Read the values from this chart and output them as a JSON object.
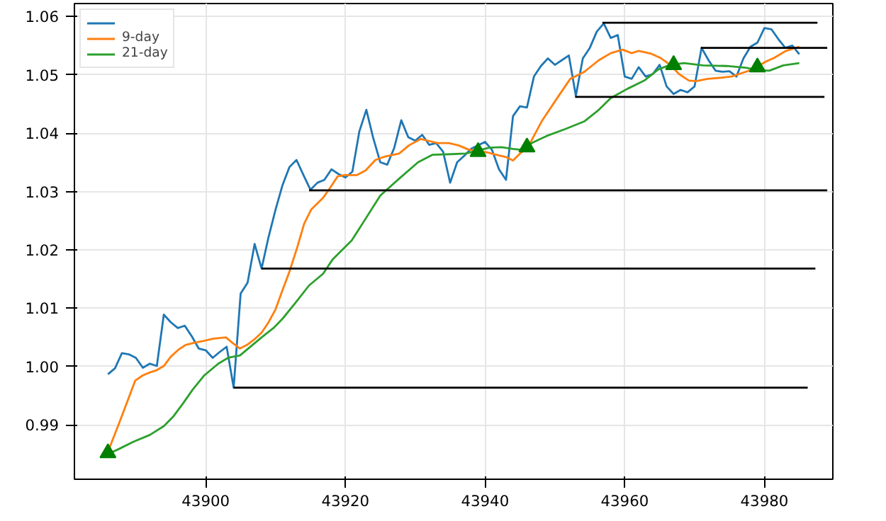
{
  "chart_data": {
    "type": "line",
    "xlim": [
      43881.2,
      43989.8
    ],
    "ylim": [
      0.9807,
      1.0622
    ],
    "xticks": [
      43900,
      43920,
      43940,
      43960,
      43980
    ],
    "yticks": [
      0.99,
      {
        "value": 1.0,
        "label": "1.00"
      },
      1.01,
      1.02,
      1.03,
      1.04,
      1.05,
      1.06
    ],
    "grid": true,
    "legend": "top left",
    "series": [
      {
        "name": null,
        "color": "#1f77b4",
        "x": [
          43886,
          43887,
          43888,
          43889,
          43890,
          43891,
          43892,
          43893,
          43894,
          43895,
          43896,
          43897,
          43898,
          43899,
          43900,
          43901,
          43902,
          43903,
          43904,
          43905,
          43906,
          43907,
          43908,
          43909,
          43910,
          43911,
          43912,
          43913,
          43914,
          43915,
          43916,
          43917,
          43918,
          43919,
          43920,
          43921,
          43922,
          43923,
          43924,
          43925,
          43926,
          43927,
          43928,
          43929,
          43930,
          43931,
          43932,
          43933,
          43934,
          43935,
          43936,
          43937,
          43938,
          43939,
          43940,
          43941,
          43942,
          43943,
          43944,
          43945,
          43946,
          43947,
          43948,
          43949,
          43950,
          43951,
          43952,
          43953,
          43954,
          43955,
          43956,
          43957,
          43958,
          43959,
          43960,
          43961,
          43962,
          43963,
          43964,
          43965,
          43966,
          43967,
          43968,
          43969,
          43970,
          43971,
          43972,
          43973,
          43974,
          43975,
          43976,
          43977,
          43978,
          43979,
          43980,
          43981,
          43982,
          43983,
          43984,
          43985
        ],
        "values": [
          0.9987,
          0.9997,
          1.0023,
          1.0021,
          1.0015,
          0.9998,
          1.0005,
          1.0001,
          1.0089,
          1.0076,
          1.0066,
          1.007,
          1.0052,
          1.0031,
          1.0028,
          1.0015,
          1.0025,
          1.0034,
          0.9964,
          1.0125,
          1.0144,
          1.021,
          1.0168,
          1.0222,
          1.0269,
          1.0311,
          1.0342,
          1.0354,
          1.0328,
          1.0303,
          1.0315,
          1.032,
          1.0338,
          1.033,
          1.0324,
          1.0334,
          1.0403,
          1.044,
          1.0391,
          1.035,
          1.0346,
          1.0375,
          1.0422,
          1.0393,
          1.0387,
          1.0397,
          1.038,
          1.0383,
          1.0368,
          1.0315,
          1.035,
          1.0361,
          1.0373,
          1.0379,
          1.0385,
          1.0371,
          1.0338,
          1.032,
          1.0429,
          1.0446,
          1.0444,
          1.0497,
          1.0515,
          1.0528,
          1.0517,
          1.0525,
          1.0533,
          1.0464,
          1.0528,
          1.0546,
          1.0574,
          1.0588,
          1.0563,
          1.0568,
          1.0497,
          1.0493,
          1.0513,
          1.0497,
          1.0501,
          1.0517,
          1.048,
          1.0467,
          1.0474,
          1.047,
          1.048,
          1.0546,
          1.0525,
          1.0507,
          1.0505,
          1.0506,
          1.0497,
          1.0528,
          1.0548,
          1.0555,
          1.058,
          1.0578,
          1.0561,
          1.0546,
          1.055,
          1.0535
        ]
      },
      {
        "name": "9-day",
        "color": "#ff7f0e",
        "x": [
          43886,
          43887.6,
          43888.9,
          43889.9,
          43891,
          43892,
          43893,
          43894,
          43895,
          43896.1,
          43897.1,
          43898.4,
          43899.7,
          43901.1,
          43902.9,
          43903.8,
          43904.9,
          43905.9,
          43906.9,
          43908,
          43909,
          43910,
          43911,
          43912,
          43913.1,
          43914.1,
          43915.1,
          43916.8,
          43917.8,
          43918.9,
          43919.9,
          43921.6,
          43922.9,
          43924.3,
          43925.7,
          43927.7,
          43929.1,
          43930.8,
          43931.8,
          43933.2,
          43934.8,
          43936.2,
          43937.6,
          43938.9,
          43940.3,
          43941.6,
          43943,
          43944,
          43945,
          43946.1,
          43948.1,
          43950.1,
          43952.2,
          43952.9,
          43954.2,
          43956.3,
          43958,
          43959.7,
          43961,
          43962,
          43963.8,
          43965.1,
          43966.5,
          43967.8,
          43969.2,
          43970.2,
          43971.9,
          43973.9,
          43975.3,
          43977.3,
          43978.4,
          43980.1,
          43981.4,
          43983.1,
          43985
        ],
        "values": [
          0.9854,
          0.9903,
          0.9944,
          0.9976,
          0.9985,
          0.999,
          0.9994,
          1.0001,
          1.0017,
          1.0029,
          1.0037,
          1.0041,
          1.0044,
          1.0048,
          1.005,
          1.0041,
          1.0031,
          1.0037,
          1.0046,
          1.0058,
          1.0076,
          1.0098,
          1.0131,
          1.0163,
          1.0204,
          1.0245,
          1.0269,
          1.0289,
          1.0306,
          1.0326,
          1.0328,
          1.0328,
          1.0336,
          1.0354,
          1.036,
          1.0365,
          1.0379,
          1.039,
          1.0387,
          1.0383,
          1.0383,
          1.0379,
          1.0372,
          1.0369,
          1.0367,
          1.0363,
          1.0359,
          1.0353,
          1.0365,
          1.0375,
          1.042,
          1.0456,
          1.0493,
          1.0497,
          1.0505,
          1.0525,
          1.0537,
          1.0543,
          1.0537,
          1.0541,
          1.0536,
          1.0529,
          1.0517,
          1.0501,
          1.049,
          1.0489,
          1.0493,
          1.0495,
          1.0497,
          1.0505,
          1.0509,
          1.0522,
          1.0529,
          1.0541,
          1.0548
        ]
      },
      {
        "name": "21-day",
        "color": "#2ca02c",
        "x": [
          43886,
          43887.6,
          43889.6,
          43892,
          43894,
          43895.4,
          43896.7,
          43898.1,
          43899.8,
          43901.8,
          43903.2,
          43904.9,
          43906.3,
          43908,
          43909.7,
          43911,
          43912.7,
          43914.8,
          43916.8,
          43918.2,
          43920.9,
          43921.6,
          43925,
          43927.7,
          43930.4,
          43932.5,
          43935.2,
          43937.2,
          43938.9,
          43940.6,
          43942.3,
          43944,
          43945.4,
          43946.7,
          43948.8,
          43951.5,
          43954.2,
          43956.3,
          43958,
          43960.4,
          43962.8,
          43964.8,
          43966.5,
          43968.5,
          43971.2,
          43974.6,
          43977.3,
          43979,
          43980.7,
          43982.7,
          43985
        ],
        "values": [
          0.985,
          0.9859,
          0.9871,
          0.9883,
          0.9898,
          0.9915,
          0.9936,
          0.996,
          0.9985,
          1.0005,
          1.0015,
          1.0019,
          1.0033,
          1.005,
          1.0066,
          1.0082,
          1.0107,
          1.0139,
          1.0159,
          1.0184,
          1.0216,
          1.0229,
          1.0293,
          1.0322,
          1.035,
          1.0363,
          1.0364,
          1.0365,
          1.037,
          1.0375,
          1.0376,
          1.0373,
          1.0371,
          1.0383,
          1.0395,
          1.0407,
          1.042,
          1.044,
          1.046,
          1.0476,
          1.049,
          1.0509,
          1.0517,
          1.052,
          1.0516,
          1.0515,
          1.0512,
          1.0508,
          1.0507,
          1.0516,
          1.052
        ]
      },
      {
        "type": "scatter",
        "marker": "triangle",
        "color": "#008000",
        "x": [
          43886,
          43939,
          43946,
          43967,
          43979
        ],
        "values": [
          0.9852,
          1.0368,
          1.0376,
          1.0517,
          1.0513
        ]
      },
      {
        "color": "#000000",
        "x": [
          43904,
          43986.2
        ],
        "values": [
          0.9964,
          0.9964
        ]
      },
      {
        "color": "#000000",
        "x": [
          43908,
          43987.3
        ],
        "values": [
          1.0168,
          1.0168
        ]
      },
      {
        "color": "#000000",
        "x": [
          43914.8,
          43989
        ],
        "values": [
          1.0302,
          1.0302
        ]
      },
      {
        "color": "#000000",
        "x": [
          43952.9,
          43988.6
        ],
        "values": [
          1.0462,
          1.0462
        ]
      },
      {
        "color": "#000000",
        "x": [
          43956.8,
          43987.6
        ],
        "values": [
          1.0589,
          1.0589
        ]
      },
      {
        "color": "#000000",
        "x": [
          43970.9,
          43989
        ],
        "values": [
          1.0546,
          1.0546
        ]
      }
    ]
  }
}
